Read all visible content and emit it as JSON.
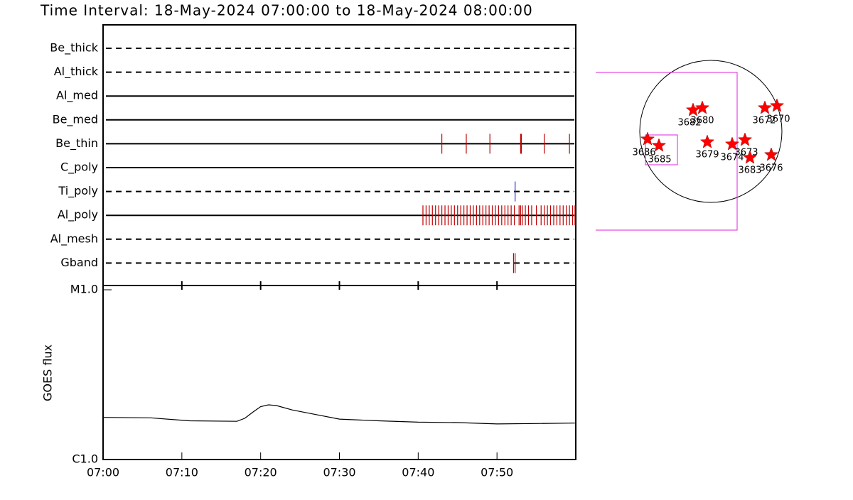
{
  "chart_data": {
    "type": "timeline",
    "title": "Time Interval: 18-May-2024 07:00:00 to 18-May-2024 08:00:00",
    "xlim": [
      "07:00",
      "08:00"
    ],
    "xticks": [
      "07:00",
      "07:10",
      "07:20",
      "07:30",
      "07:40",
      "07:50"
    ],
    "filters": [
      {
        "name": "Be_thick",
        "style": "dashed",
        "color": "#c00000",
        "events": []
      },
      {
        "name": "Al_thick",
        "style": "dashed",
        "color": "#c00000",
        "events": []
      },
      {
        "name": "Al_med",
        "style": "solid",
        "color": "#c00000",
        "events": []
      },
      {
        "name": "Be_med",
        "style": "solid",
        "color": "#c00000",
        "events": []
      },
      {
        "name": "Be_thin",
        "style": "solid",
        "color": "#c00000",
        "events": [
          "07:43:00",
          "07:46:06",
          "07:49:06",
          "07:53:00",
          "07:53:06",
          "07:56:00",
          "07:59:12"
        ]
      },
      {
        "name": "C_poly",
        "style": "solid",
        "color": "#c00000",
        "events": []
      },
      {
        "name": "Ti_poly",
        "style": "dashed",
        "color": "#3030c0",
        "events": [
          "07:52:18"
        ]
      },
      {
        "name": "Al_poly",
        "style": "solid",
        "color": "#c00000",
        "events": [
          "07:40:36",
          "07:41:00",
          "07:41:24",
          "07:41:48",
          "07:42:12",
          "07:42:36",
          "07:43:00",
          "07:43:24",
          "07:43:48",
          "07:44:12",
          "07:44:36",
          "07:45:00",
          "07:45:24",
          "07:45:48",
          "07:46:12",
          "07:46:36",
          "07:47:00",
          "07:47:24",
          "07:47:48",
          "07:48:12",
          "07:48:36",
          "07:49:00",
          "07:49:24",
          "07:49:48",
          "07:50:12",
          "07:50:36",
          "07:51:00",
          "07:51:24",
          "07:51:48",
          "07:52:12",
          "07:52:48",
          "07:53:00",
          "07:53:12",
          "07:53:36",
          "07:54:00",
          "07:54:24",
          "07:55:00",
          "07:55:36",
          "07:56:00",
          "07:56:24",
          "07:56:48",
          "07:57:12",
          "07:57:36",
          "07:58:00",
          "07:58:24",
          "07:58:48",
          "07:59:12",
          "07:59:36",
          "07:59:54"
        ]
      },
      {
        "name": "Al_mesh",
        "style": "dashed",
        "color": "#c00000",
        "events": []
      },
      {
        "name": "Gband",
        "style": "dashed",
        "color": "#c00000",
        "events": [
          "07:52:06",
          "07:52:18"
        ]
      }
    ],
    "goes": {
      "ylabel": "GOES flux",
      "log": true,
      "ylim": [
        1e-06,
        1e-05
      ],
      "yticks": [
        {
          "value": 1e-06,
          "label": "C1.0"
        },
        {
          "value": 1e-05,
          "label": "M1.0"
        }
      ],
      "color": "#000000",
      "x": [
        "07:00",
        "07:06",
        "07:11",
        "07:17",
        "07:18",
        "07:19",
        "07:20",
        "07:21",
        "07:22",
        "07:24",
        "07:27",
        "07:30",
        "07:35",
        "07:40",
        "07:45",
        "07:50",
        "07:55",
        "07:59:54"
      ],
      "values": [
        1.77e-06,
        1.76e-06,
        1.69e-06,
        1.68e-06,
        1.75e-06,
        1.9e-06,
        2.05e-06,
        2.1e-06,
        2.08e-06,
        1.96e-06,
        1.84e-06,
        1.73e-06,
        1.69e-06,
        1.66e-06,
        1.65e-06,
        1.62e-06,
        1.63e-06,
        1.64e-06
      ]
    },
    "regions": [
      "3686",
      "3685",
      "3682",
      "3680",
      "3679",
      "3674",
      "3673",
      "3683",
      "3672",
      "3670",
      "3676"
    ]
  }
}
